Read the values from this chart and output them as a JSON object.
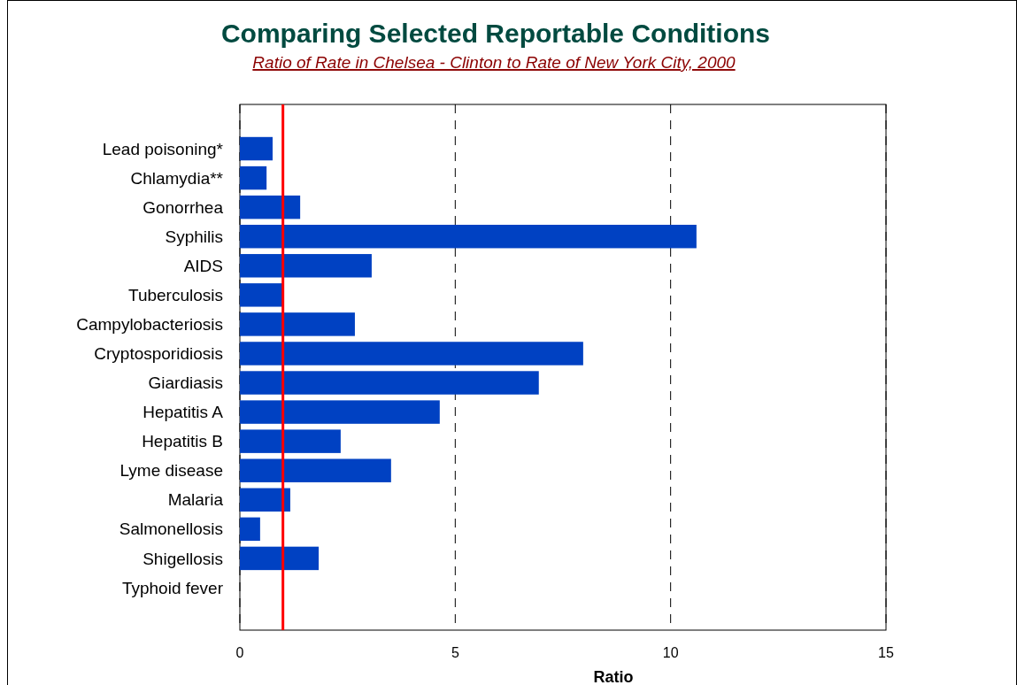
{
  "chart_data": {
    "type": "bar",
    "orientation": "horizontal",
    "title": "Comparing Selected Reportable Conditions",
    "subtitle": "Ratio of Rate in Chelsea - Clinton  to Rate of New York City, 2000",
    "xlabel": "Ratio",
    "categories": [
      "Lead poisoning*",
      "Chlamydia**",
      "Gonorrhea",
      "Syphilis",
      "AIDS",
      "Tuberculosis",
      "Campylobacteriosis",
      "Cryptosporidiosis",
      "Giardiasis",
      "Hepatitis A",
      "Hepatitis B",
      "Lyme disease",
      "Malaria",
      "Salmonellosis",
      "Shigellosis",
      "Typhoid fever"
    ],
    "values": [
      0.76,
      0.62,
      1.4,
      10.6,
      3.06,
      1.0,
      2.67,
      7.97,
      6.94,
      4.64,
      2.34,
      3.51,
      1.17,
      0.47,
      1.83,
      0
    ],
    "color": "#0041c2",
    "xlim": [
      0,
      15
    ],
    "xticks": [
      0,
      5,
      10,
      15
    ],
    "grid": "x",
    "ref_lines": [
      {
        "axis": "x",
        "value": 1,
        "color": "#ff0000"
      }
    ]
  }
}
